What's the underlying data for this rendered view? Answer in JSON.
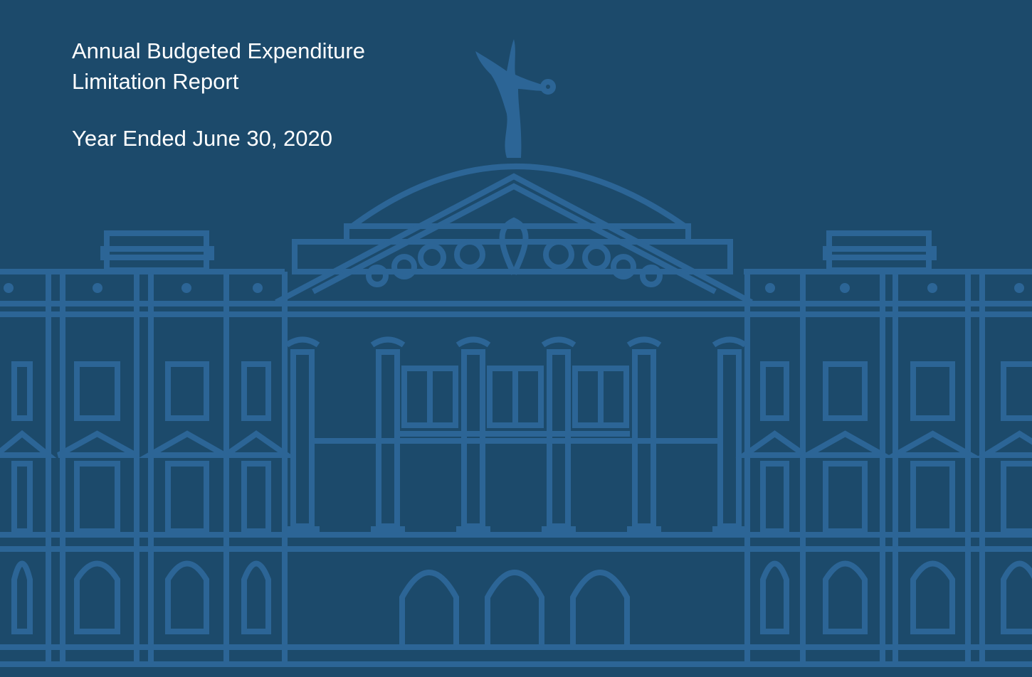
{
  "header": {
    "title_lines": [
      "Annual Budgeted Expenditure",
      "Limitation Report"
    ],
    "subtitle": "Year Ended June 30, 2020"
  }
}
